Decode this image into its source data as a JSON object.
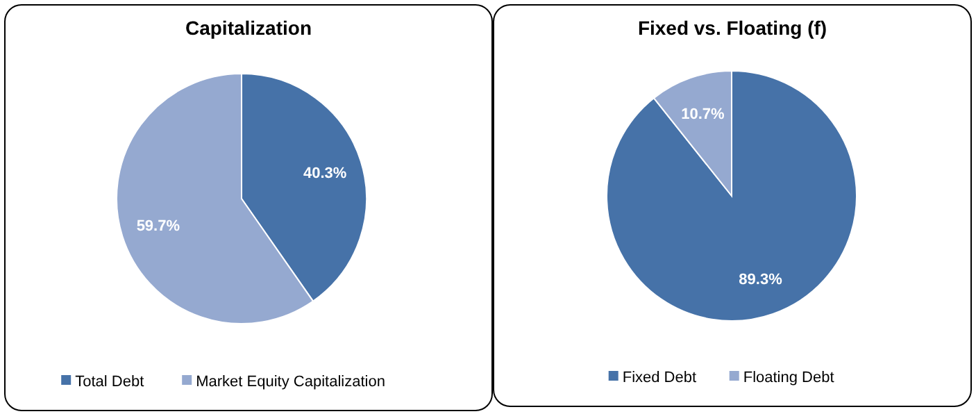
{
  "chart_data": [
    {
      "type": "pie",
      "title": "Capitalization",
      "categories": [
        "Total Debt",
        "Market Equity Capitalization"
      ],
      "values": [
        40.3,
        59.7
      ],
      "value_labels": [
        "40.3%",
        "59.7%"
      ],
      "colors": [
        "#4672a8",
        "#95a9d0"
      ],
      "legend": "bottom"
    },
    {
      "type": "pie",
      "title": "Fixed vs. Floating (f)",
      "categories": [
        "Fixed Debt",
        "Floating Debt"
      ],
      "values": [
        89.3,
        10.7
      ],
      "value_labels": [
        "89.3%",
        "10.7%"
      ],
      "colors": [
        "#4672a8",
        "#95a9d0"
      ],
      "legend": "bottom"
    }
  ]
}
